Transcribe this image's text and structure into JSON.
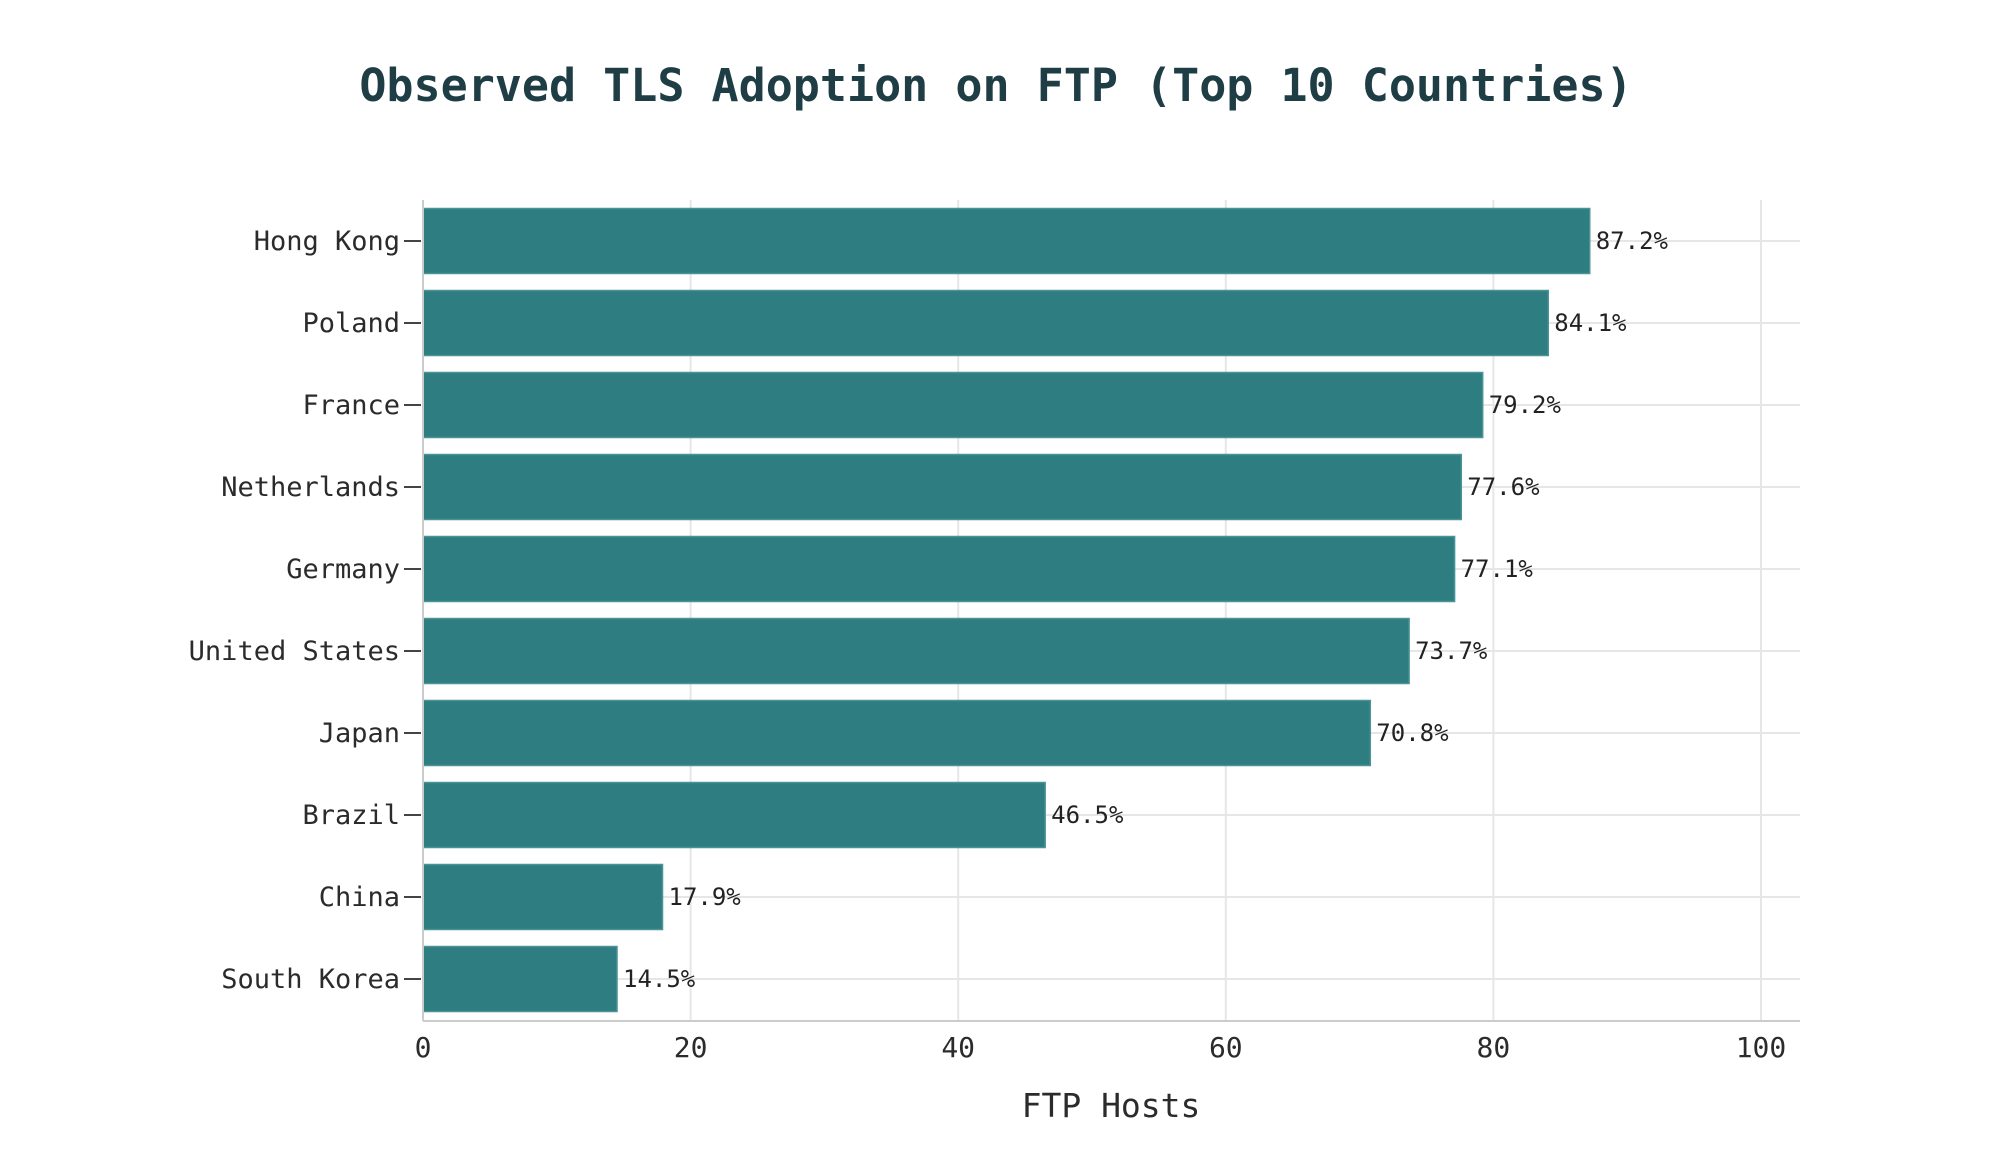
{
  "chart_data": {
    "type": "bar",
    "orientation": "horizontal",
    "title": "Observed TLS Adoption on FTP (Top 10 Countries)",
    "xlabel": "FTP Hosts",
    "ylabel": "",
    "categories": [
      "Hong Kong",
      "Poland",
      "France",
      "Netherlands",
      "Germany",
      "United States",
      "Japan",
      "Brazil",
      "China",
      "South Korea"
    ],
    "values": [
      87.2,
      84.1,
      79.2,
      77.6,
      77.1,
      73.7,
      70.8,
      46.5,
      17.9,
      14.5
    ],
    "data_labels": [
      "87.2%",
      "84.1%",
      "79.2%",
      "77.6%",
      "77.1%",
      "73.7%",
      "70.8%",
      "46.5%",
      "17.9%",
      "14.5%"
    ],
    "xlim": [
      0,
      103
    ],
    "xticks": [
      0,
      20,
      40,
      60,
      80,
      100
    ],
    "xtick_labels": [
      "0",
      "20",
      "40",
      "60",
      "80",
      "100"
    ],
    "grid": true,
    "legend": "none",
    "colors": {
      "bar": "#2e7d80",
      "bar_edge": "#4a9396",
      "title": "#1f3d44",
      "grid": "#e6e6e6"
    }
  }
}
